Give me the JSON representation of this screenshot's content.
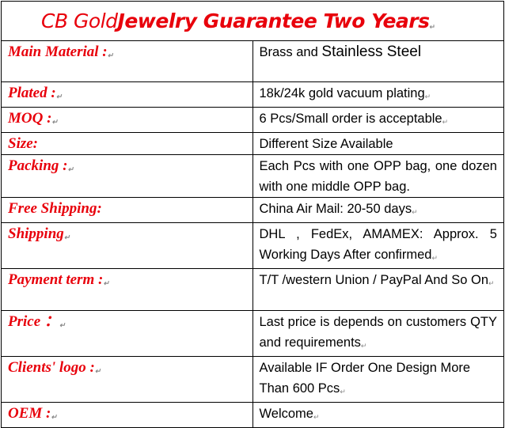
{
  "title": {
    "part1": "CB Gold",
    "part2": "Jewelry Guarantee Two Years"
  },
  "rows": [
    {
      "label": "Main Material :",
      "value_a": "Brass and",
      "value_b": "Stainless Steel"
    },
    {
      "label": "Plated :",
      "value": "18k/24k gold vacuum plating"
    },
    {
      "label": "MOQ :",
      "value": "6 Pcs/Small order is acceptable"
    },
    {
      "label": "Size:",
      "value": "Different Size Available"
    },
    {
      "label": "Packing :",
      "value": "Each Pcs with one OPP bag, one dozen with one middle OPP bag."
    },
    {
      "label": "Free Shipping:",
      "value": "China Air Mail: 20-50 days"
    },
    {
      "label": "Shipping",
      "value": "DHL , FedEx, AMAMEX: Approx. 5 Working Days After confirmed"
    },
    {
      "label": "Payment term :",
      "value": "T/T /western Union / PayPal And So On"
    },
    {
      "label": "Price ：",
      "value": "Last price is depends on customers QTY and requirements"
    },
    {
      "label": "Clients' logo :",
      "value": "Available IF Order One Design More Than 600 Pcs"
    },
    {
      "label": "OEM :",
      "value": "Welcome"
    }
  ],
  "colors": {
    "label": "#e8000b",
    "text": "#000000",
    "border": "#000000"
  }
}
